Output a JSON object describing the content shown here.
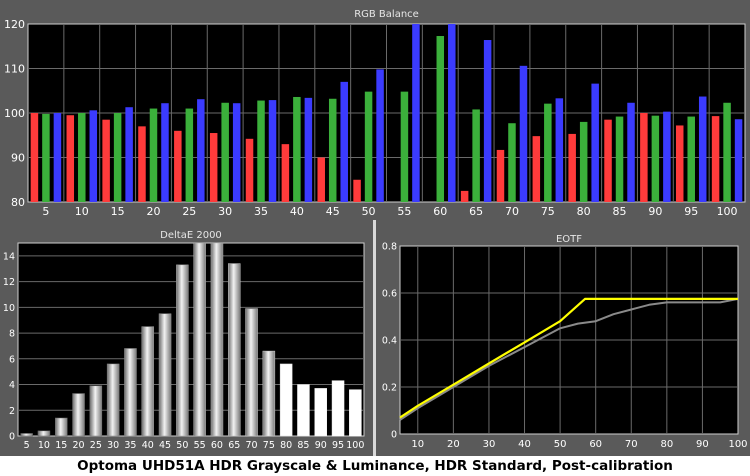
{
  "caption": "Optoma UHD51A HDR Grayscale & Luminance, HDR Standard, Post-calibration",
  "chart_data": [
    {
      "type": "bar",
      "title": "RGB Balance",
      "categories": [
        "5",
        "10",
        "15",
        "20",
        "25",
        "30",
        "35",
        "40",
        "45",
        "50",
        "55",
        "60",
        "65",
        "70",
        "75",
        "80",
        "85",
        "90",
        "95",
        "100"
      ],
      "ylim": [
        80,
        120
      ],
      "yticks": [
        80,
        90,
        100,
        110,
        120
      ],
      "grid": true,
      "series": [
        {
          "color": "#ff3b3b",
          "values": [
            100,
            99.5,
            98.5,
            97,
            96,
            95.5,
            94.2,
            93,
            90,
            85,
            80,
            80,
            82.5,
            91.7,
            94.8,
            95.3,
            98.5,
            100,
            97.2,
            99.3
          ]
        },
        {
          "color": "#3bb03b",
          "values": [
            99.8,
            100,
            100,
            101,
            101,
            102.3,
            102.8,
            103.6,
            103.2,
            104.8,
            104.8,
            117.3,
            100.8,
            97.7,
            102.1,
            98,
            99.2,
            99.4,
            99.2,
            102.3
          ]
        },
        {
          "color": "#3b3bff",
          "values": [
            100,
            100.6,
            101.3,
            102.2,
            103.1,
            102.2,
            102.9,
            103.4,
            107,
            109.8,
            120,
            120,
            116.4,
            110.6,
            103.3,
            106.6,
            102.3,
            100.3,
            103.7,
            98.6
          ]
        }
      ]
    },
    {
      "type": "bar",
      "title": "DeltaE 2000",
      "categories": [
        "5",
        "10",
        "15",
        "20",
        "25",
        "30",
        "35",
        "40",
        "45",
        "50",
        "55",
        "60",
        "65",
        "70",
        "75",
        "80",
        "85",
        "90",
        "95",
        "100"
      ],
      "values": [
        0.2,
        0.4,
        1.4,
        3.3,
        3.9,
        5.6,
        6.8,
        8.5,
        9.5,
        13.3,
        15.0,
        15.0,
        13.4,
        9.9,
        6.6,
        5.6,
        4.0,
        3.7,
        4.3,
        3.6
      ],
      "ylim": [
        0,
        15
      ],
      "yticks": [
        0,
        2,
        4,
        6,
        8,
        10,
        12,
        14
      ],
      "grid": true
    },
    {
      "type": "line",
      "title": "EOTF",
      "xlim": [
        5,
        100
      ],
      "ylim": [
        0,
        0.8
      ],
      "xticks": [
        10,
        20,
        30,
        40,
        50,
        60,
        70,
        80,
        90,
        100
      ],
      "yticks": [
        0,
        0.2,
        0.4,
        0.6,
        0.8
      ],
      "grid": true,
      "series": [
        {
          "color": "#ffff00",
          "x": [
            5,
            10,
            20,
            30,
            40,
            50,
            57,
            60,
            70,
            80,
            90,
            100
          ],
          "y": [
            0.07,
            0.12,
            0.21,
            0.3,
            0.39,
            0.48,
            0.575,
            0.575,
            0.575,
            0.575,
            0.575,
            0.575
          ]
        },
        {
          "color": "#8a8a8a",
          "x": [
            5,
            10,
            20,
            30,
            40,
            50,
            55,
            60,
            65,
            70,
            75,
            80,
            85,
            90,
            95,
            100
          ],
          "y": [
            0.06,
            0.11,
            0.2,
            0.29,
            0.37,
            0.45,
            0.47,
            0.48,
            0.51,
            0.53,
            0.55,
            0.56,
            0.56,
            0.56,
            0.56,
            0.575
          ]
        }
      ]
    }
  ]
}
